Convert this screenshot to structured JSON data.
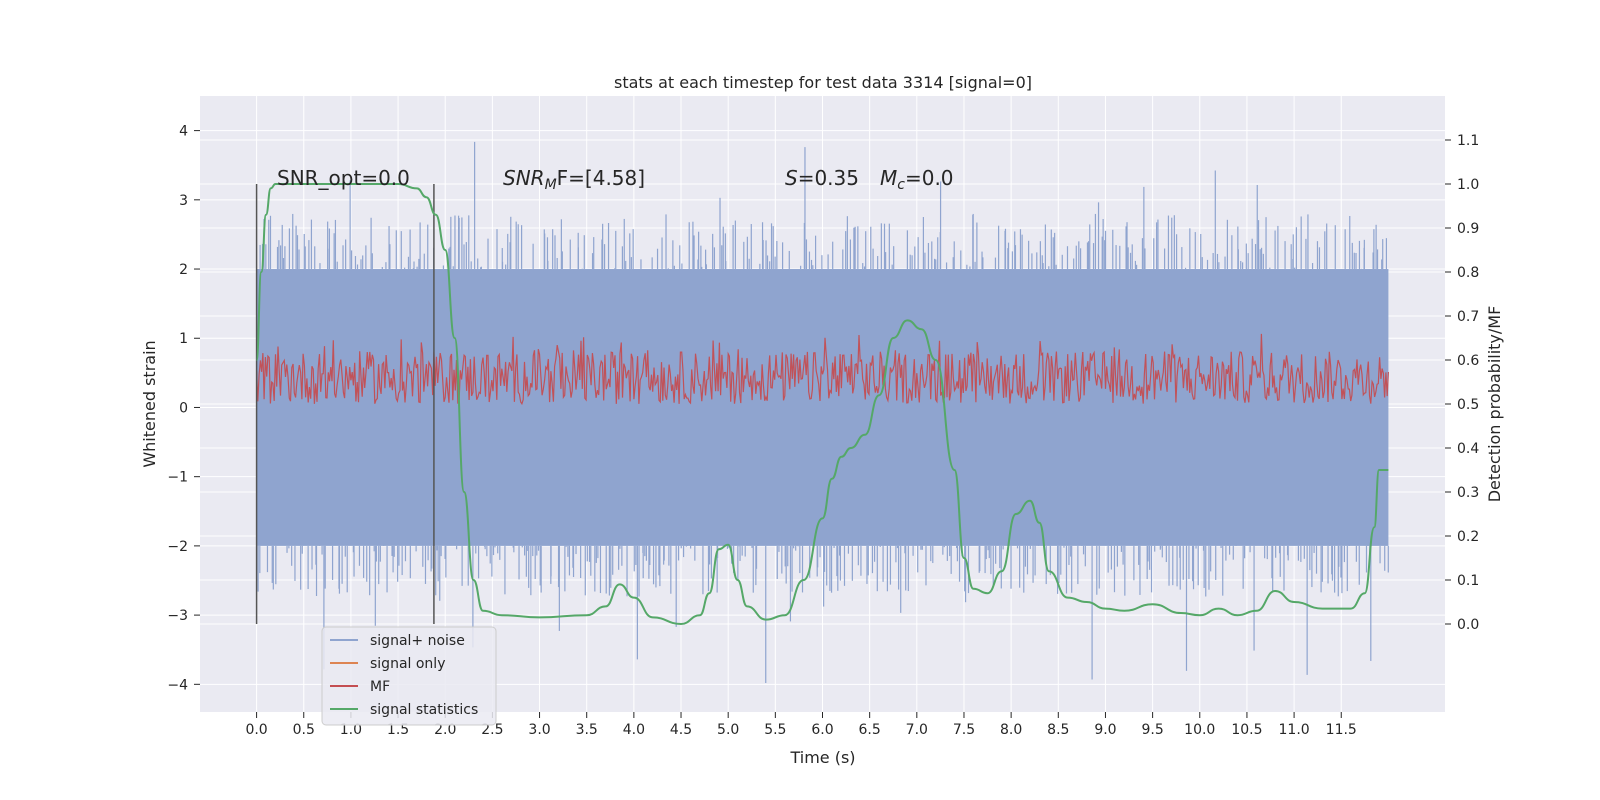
{
  "chart_data": {
    "type": "line",
    "title": "stats at each timestep for test data 3314 [signal=0]",
    "xlabel": "Time (s)",
    "ylabel": "Whitened strain",
    "ylabel_right": "Detection probability/MF",
    "xlim": [
      -0.6,
      12.6
    ],
    "ylim_left": [
      -4.4,
      4.5
    ],
    "ylim_right": [
      -0.2,
      1.2
    ],
    "x_ticks": [
      "0.0",
      "0.5",
      "1.0",
      "1.5",
      "2.0",
      "2.5",
      "3.0",
      "3.5",
      "4.0",
      "4.5",
      "5.0",
      "5.5",
      "6.0",
      "6.5",
      "7.0",
      "7.5",
      "8.0",
      "8.5",
      "9.0",
      "9.5",
      "10.0",
      "10.5",
      "11.0",
      "11.5"
    ],
    "y_ticks_left": [
      "4",
      "3",
      "2",
      "1",
      "0",
      "−1",
      "−2",
      "−3",
      "−4"
    ],
    "y_ticks_right": [
      "1.1",
      "1.0",
      "0.9",
      "0.8",
      "0.7",
      "0.6",
      "0.5",
      "0.4",
      "0.3",
      "0.2",
      "0.1",
      "0.0"
    ],
    "grid": true,
    "legend": {
      "position": "lower-left",
      "entries": [
        "signal+ noise",
        "signal only",
        "MF",
        "signal statistics"
      ]
    },
    "colors": {
      "signal_noise": "#8fa4cf",
      "signal_only": "#dd8452",
      "mf": "#c44e52",
      "statistics": "#55a868",
      "background": "#eaeaf2",
      "grid": "#ffffff"
    },
    "vlines_x": [
      0.0,
      1.88
    ],
    "annotations": [
      {
        "id": "snr_opt",
        "text": "SNR_opt=0.0"
      },
      {
        "id": "snr_mf_main",
        "text": "SNR",
        "sub": "M",
        "rest": "F=[4.58]"
      },
      {
        "id": "s_val",
        "text": "S",
        "rest": "=0.35"
      },
      {
        "id": "mc_val",
        "text": "M",
        "sub": "c",
        "rest": "=0.0"
      }
    ],
    "series": [
      {
        "name": "signal+ noise",
        "axis": "left",
        "x_range": [
          0.0,
          12.0
        ],
        "core_band": [
          -2.0,
          2.0
        ],
        "typical_range": [
          -2.8,
          2.8
        ],
        "extremes": [
          -4.0,
          4.1
        ]
      },
      {
        "name": "signal only",
        "axis": "left",
        "values": []
      },
      {
        "name": "MF",
        "axis": "right",
        "x_range": [
          0.0,
          12.0
        ],
        "band": [
          0.5,
          0.62
        ],
        "peaks": 0.66
      },
      {
        "name": "signal statistics",
        "axis": "right",
        "x": [
          0.0,
          0.05,
          0.1,
          0.15,
          0.2,
          0.3,
          0.5,
          1.0,
          1.5,
          1.7,
          1.8,
          1.9,
          2.0,
          2.1,
          2.2,
          2.3,
          2.4,
          2.6,
          3.0,
          3.5,
          3.7,
          3.85,
          4.0,
          4.2,
          4.5,
          4.7,
          4.8,
          4.9,
          5.0,
          5.1,
          5.2,
          5.4,
          5.6,
          5.8,
          6.0,
          6.1,
          6.2,
          6.3,
          6.45,
          6.6,
          6.75,
          6.9,
          7.05,
          7.2,
          7.4,
          7.5,
          7.6,
          7.75,
          7.9,
          8.05,
          8.2,
          8.3,
          8.4,
          8.6,
          8.8,
          9.0,
          9.2,
          9.5,
          9.8,
          10.0,
          10.2,
          10.4,
          10.6,
          10.8,
          11.0,
          11.3,
          11.6,
          11.75,
          11.85,
          11.9,
          12.0
        ],
        "values": [
          0.6,
          0.8,
          0.93,
          0.99,
          1.0,
          1.0,
          1.0,
          1.0,
          1.0,
          0.99,
          0.97,
          0.93,
          0.85,
          0.65,
          0.3,
          0.1,
          0.03,
          0.02,
          0.015,
          0.02,
          0.04,
          0.09,
          0.06,
          0.015,
          0.0,
          0.02,
          0.07,
          0.17,
          0.18,
          0.1,
          0.04,
          0.01,
          0.02,
          0.1,
          0.24,
          0.33,
          0.38,
          0.4,
          0.43,
          0.52,
          0.65,
          0.69,
          0.67,
          0.6,
          0.35,
          0.15,
          0.08,
          0.07,
          0.12,
          0.25,
          0.28,
          0.23,
          0.12,
          0.06,
          0.05,
          0.035,
          0.03,
          0.045,
          0.025,
          0.02,
          0.035,
          0.02,
          0.03,
          0.075,
          0.05,
          0.035,
          0.035,
          0.07,
          0.22,
          0.35,
          0.35
        ]
      }
    ]
  }
}
